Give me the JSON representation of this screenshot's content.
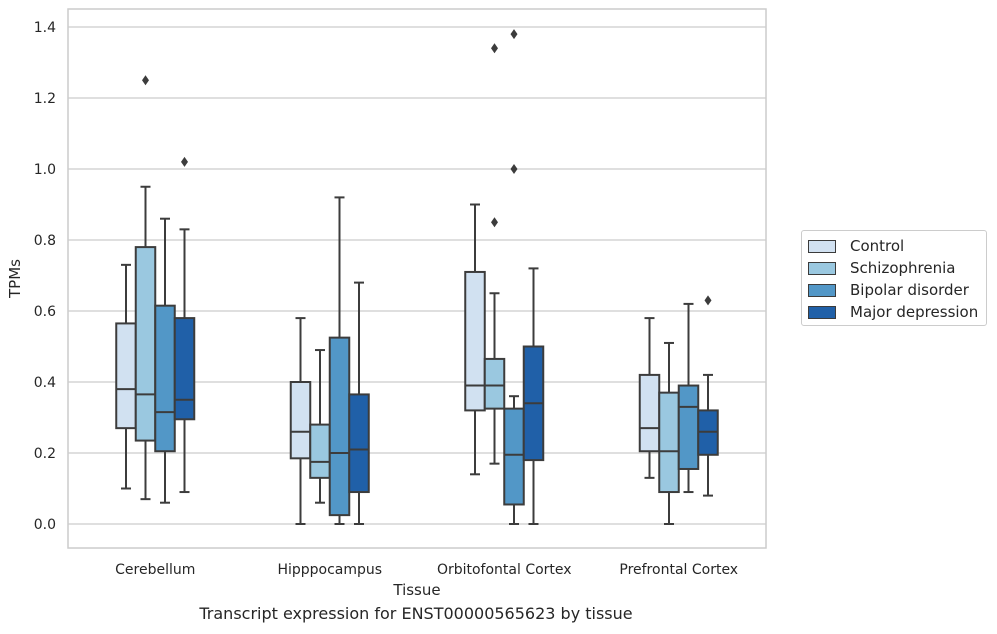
{
  "chart_data": {
    "type": "box",
    "title": "",
    "caption": "Transcript expression for ENST00000565623 by tissue",
    "xlabel": "Tissue",
    "ylabel": "TPMs",
    "ylim": [
      -0.065,
      1.45
    ],
    "yticks": [
      0.0,
      0.2,
      0.4,
      0.6,
      0.8,
      1.0,
      1.2,
      1.4
    ],
    "ytick_labels": [
      "0.0",
      "0.2",
      "0.4",
      "0.6",
      "0.8",
      "1.0",
      "1.2",
      "1.4"
    ],
    "grid": "horizontal",
    "legend_position": "right",
    "categories": [
      "Cerebellum",
      "Hipppocampus",
      "Orbitofontal Cortex",
      "Prefrontal Cortex"
    ],
    "series": [
      {
        "name": "Control",
        "color": "#d1e1f1",
        "boxes": [
          {
            "whisker_low": 0.1,
            "q1": 0.27,
            "median": 0.38,
            "q3": 0.565,
            "whisker_high": 0.73,
            "outliers": []
          },
          {
            "whisker_low": 0.0,
            "q1": 0.185,
            "median": 0.26,
            "q3": 0.4,
            "whisker_high": 0.58,
            "outliers": []
          },
          {
            "whisker_low": 0.14,
            "q1": 0.32,
            "median": 0.39,
            "q3": 0.71,
            "whisker_high": 0.9,
            "outliers": []
          },
          {
            "whisker_low": 0.13,
            "q1": 0.205,
            "median": 0.27,
            "q3": 0.42,
            "whisker_high": 0.58,
            "outliers": []
          }
        ]
      },
      {
        "name": "Schizophrenia",
        "color": "#9ac8e0",
        "boxes": [
          {
            "whisker_low": 0.07,
            "q1": 0.235,
            "median": 0.365,
            "q3": 0.78,
            "whisker_high": 0.95,
            "outliers": [
              1.25
            ]
          },
          {
            "whisker_low": 0.06,
            "q1": 0.13,
            "median": 0.175,
            "q3": 0.28,
            "whisker_high": 0.49,
            "outliers": []
          },
          {
            "whisker_low": 0.17,
            "q1": 0.325,
            "median": 0.39,
            "q3": 0.465,
            "whisker_high": 0.65,
            "outliers": [
              0.85,
              1.34
            ]
          },
          {
            "whisker_low": 0.0,
            "q1": 0.09,
            "median": 0.205,
            "q3": 0.37,
            "whisker_high": 0.51,
            "outliers": []
          }
        ]
      },
      {
        "name": "Bipolar disorder",
        "color": "#5297c7",
        "boxes": [
          {
            "whisker_low": 0.06,
            "q1": 0.205,
            "median": 0.315,
            "q3": 0.615,
            "whisker_high": 0.86,
            "outliers": []
          },
          {
            "whisker_low": 0.0,
            "q1": 0.025,
            "median": 0.2,
            "q3": 0.525,
            "whisker_high": 0.92,
            "outliers": []
          },
          {
            "whisker_low": 0.0,
            "q1": 0.055,
            "median": 0.195,
            "q3": 0.325,
            "whisker_high": 0.36,
            "outliers": [
              1.0,
              1.38
            ]
          },
          {
            "whisker_low": 0.09,
            "q1": 0.155,
            "median": 0.33,
            "q3": 0.39,
            "whisker_high": 0.62,
            "outliers": []
          }
        ]
      },
      {
        "name": "Major depression",
        "color": "#2060a8",
        "boxes": [
          {
            "whisker_low": 0.09,
            "q1": 0.295,
            "median": 0.35,
            "q3": 0.58,
            "whisker_high": 0.83,
            "outliers": [
              1.02
            ]
          },
          {
            "whisker_low": 0.0,
            "q1": 0.09,
            "median": 0.21,
            "q3": 0.365,
            "whisker_high": 0.68,
            "outliers": []
          },
          {
            "whisker_low": 0.0,
            "q1": 0.18,
            "median": 0.34,
            "q3": 0.5,
            "whisker_high": 0.72,
            "outliers": []
          },
          {
            "whisker_low": 0.08,
            "q1": 0.195,
            "median": 0.26,
            "q3": 0.32,
            "whisker_high": 0.42,
            "outliers": [
              0.63
            ]
          }
        ]
      }
    ]
  }
}
